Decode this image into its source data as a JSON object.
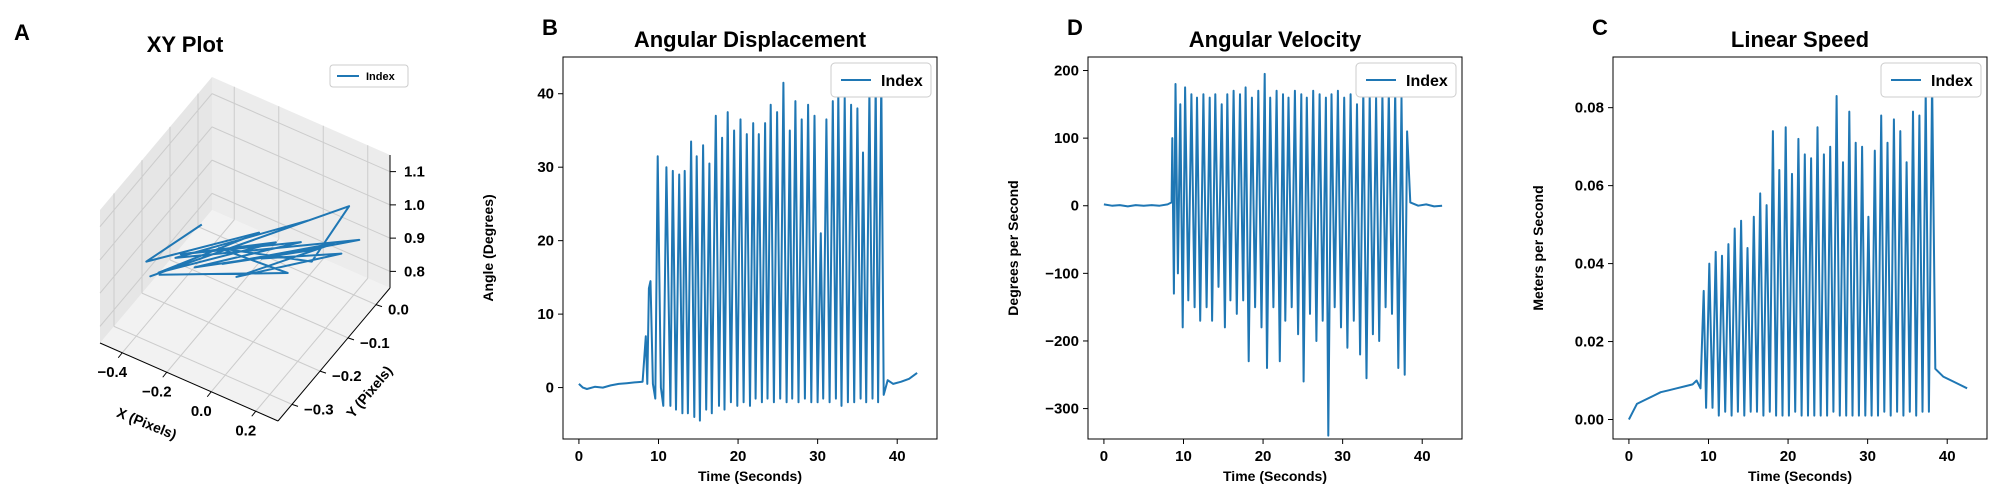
{
  "colors": {
    "series": "#1f77b4",
    "axis": "#000000",
    "grid": "#cccccc",
    "pane": "#f2f2f2"
  },
  "chart_data": [
    {
      "panel": "A",
      "type": "line",
      "projection": "3d",
      "title": "XY Plot",
      "xlabel": "X (Pixels)",
      "ylabel": "Y (Pixels)",
      "zlabel": "",
      "xlim": [
        -0.5,
        0.3
      ],
      "ylim": [
        -0.35,
        0.05
      ],
      "zlim": [
        0.75,
        1.15
      ],
      "xticks": [
        -0.4,
        -0.2,
        0.0,
        0.2
      ],
      "xtick_labels": [
        "−0.4",
        "−0.2",
        "0.0",
        "0.2"
      ],
      "yticks": [
        0.0,
        -0.1,
        -0.2,
        -0.3
      ],
      "ytick_labels": [
        "0.0",
        "−0.1",
        "−0.2",
        "−0.3"
      ],
      "zticks": [
        0.8,
        0.9,
        1.0,
        1.1
      ],
      "ztick_labels": [
        "0.8",
        "0.9",
        "1.0",
        "1.1"
      ],
      "grid": true,
      "legend": {
        "entries": [
          "Index"
        ],
        "placement": "top-right"
      },
      "series": [
        {
          "name": "Index",
          "points": [
            {
              "x": -0.42,
              "y": -0.05,
              "z": 0.83
            },
            {
              "x": -0.38,
              "y": -0.28,
              "z": 0.96
            },
            {
              "x": -0.2,
              "y": -0.02,
              "z": 0.84
            },
            {
              "x": -0.3,
              "y": -0.3,
              "z": 0.97
            },
            {
              "x": -0.1,
              "y": -0.04,
              "z": 0.86
            },
            {
              "x": -0.25,
              "y": -0.26,
              "z": 1.0
            },
            {
              "x": 0.0,
              "y": -0.03,
              "z": 0.88
            },
            {
              "x": -0.15,
              "y": -0.29,
              "z": 1.02
            },
            {
              "x": 0.08,
              "y": -0.05,
              "z": 0.9
            },
            {
              "x": -0.05,
              "y": -0.27,
              "z": 1.04
            },
            {
              "x": 0.15,
              "y": -0.03,
              "z": 0.92
            },
            {
              "x": 0.05,
              "y": -0.3,
              "z": 1.06
            },
            {
              "x": 0.22,
              "y": -0.06,
              "z": 0.94
            },
            {
              "x": 0.1,
              "y": -0.25,
              "z": 1.08
            },
            {
              "x": 0.25,
              "y": -0.02,
              "z": 0.95
            },
            {
              "x": -0.35,
              "y": -0.2,
              "z": 0.9
            },
            {
              "x": 0.12,
              "y": -0.1,
              "z": 1.05
            },
            {
              "x": -0.4,
              "y": -0.25,
              "z": 0.88
            },
            {
              "x": 0.28,
              "y": -0.08,
              "z": 1.12
            },
            {
              "x": 0.2,
              "y": -0.15,
              "z": 1.0
            },
            {
              "x": -0.28,
              "y": -0.1,
              "z": 0.85
            },
            {
              "x": 0.18,
              "y": -0.22,
              "z": 1.03
            },
            {
              "x": -0.45,
              "y": -0.18,
              "z": 0.8
            }
          ]
        }
      ]
    },
    {
      "panel": "B",
      "type": "line",
      "title": "Angular Displacement",
      "xlabel": "Time (Seconds)",
      "ylabel": "Angle (Degrees)",
      "xlim": [
        -2,
        45
      ],
      "ylim": [
        -7,
        45
      ],
      "xticks": [
        0,
        10,
        20,
        30,
        40
      ],
      "yticks": [
        0,
        10,
        20,
        30,
        40
      ],
      "grid": false,
      "legend": {
        "entries": [
          "Index"
        ],
        "placement": "top-right"
      },
      "series": [
        {
          "name": "Index",
          "x": [
            0.0,
            0.5,
            1.0,
            2.0,
            3.0,
            4.0,
            5.0,
            6.0,
            7.0,
            8.0,
            8.4,
            8.6,
            8.8,
            9.0,
            9.3,
            9.6,
            9.9,
            10.3,
            10.6,
            11.0,
            11.5,
            11.8,
            12.2,
            12.6,
            13.0,
            13.3,
            13.7,
            14.1,
            14.5,
            14.8,
            15.2,
            15.6,
            16.0,
            16.4,
            16.7,
            17.2,
            17.6,
            18.0,
            18.3,
            18.7,
            19.1,
            19.5,
            19.9,
            20.3,
            20.7,
            21.1,
            21.5,
            21.9,
            22.2,
            22.6,
            23.0,
            23.4,
            23.7,
            24.1,
            24.5,
            24.9,
            25.3,
            25.7,
            26.1,
            26.5,
            26.8,
            27.2,
            27.6,
            28.0,
            28.4,
            28.8,
            29.2,
            29.6,
            30.0,
            30.4,
            30.7,
            31.1,
            31.5,
            31.9,
            32.3,
            32.6,
            33.0,
            33.4,
            33.8,
            34.2,
            34.6,
            35.0,
            35.4,
            35.7,
            36.1,
            36.5,
            36.9,
            37.3,
            37.6,
            38.0,
            38.3,
            38.8,
            39.5,
            40.5,
            41.5,
            42.5
          ],
          "values": [
            0.5,
            0.0,
            -0.2,
            0.1,
            0.0,
            0.3,
            0.5,
            0.6,
            0.7,
            0.8,
            7.0,
            0.5,
            13.5,
            14.5,
            0.5,
            -1.5,
            31.5,
            0.0,
            -2.5,
            30.0,
            -2.5,
            29.5,
            -3.0,
            29.0,
            -3.5,
            29.5,
            -3.5,
            33.5,
            -4.0,
            31.5,
            -4.5,
            33.0,
            -3.0,
            30.5,
            -3.5,
            37.0,
            -2.5,
            34.0,
            -3.0,
            37.5,
            -2.0,
            35.0,
            -2.5,
            36.5,
            -2.0,
            34.5,
            -2.5,
            36.0,
            -1.5,
            34.5,
            -2.0,
            36.0,
            -1.5,
            38.5,
            -2.0,
            37.5,
            -1.5,
            41.5,
            -2.0,
            35.0,
            -1.5,
            39.0,
            -2.0,
            36.5,
            -1.5,
            38.5,
            -2.0,
            37.0,
            -2.0,
            21.0,
            -1.5,
            36.5,
            -2.0,
            39.0,
            -1.5,
            40.0,
            -2.5,
            39.5,
            -2.0,
            38.5,
            -2.0,
            38.0,
            -1.5,
            32.0,
            -2.0,
            40.5,
            -1.5,
            41.5,
            -2.0,
            42.0,
            -1.0,
            1.0,
            0.5,
            0.8,
            1.2,
            2.0
          ]
        }
      ]
    },
    {
      "panel": "D",
      "type": "line",
      "title": "Angular Velocity",
      "xlabel": "Time (Seconds)",
      "ylabel": "Degrees per Second",
      "xlim": [
        -2,
        45
      ],
      "ylim": [
        -345,
        220
      ],
      "xticks": [
        0,
        10,
        20,
        30,
        40
      ],
      "yticks": [
        -300,
        -200,
        -100,
        0,
        100,
        200
      ],
      "ytick_labels": [
        "−300",
        "−200",
        "−100",
        "0",
        "100",
        "200"
      ],
      "grid": false,
      "legend": {
        "entries": [
          "Index"
        ],
        "placement": "top-right"
      },
      "series": [
        {
          "name": "Index",
          "x": [
            0.0,
            1.0,
            2.0,
            3.0,
            4.0,
            5.0,
            6.0,
            7.0,
            8.0,
            8.5,
            8.6,
            8.8,
            9.0,
            9.3,
            9.6,
            9.9,
            10.2,
            10.6,
            11.0,
            11.4,
            11.7,
            12.1,
            12.5,
            12.9,
            13.3,
            13.6,
            14.0,
            14.4,
            14.8,
            15.2,
            15.5,
            15.9,
            16.3,
            16.7,
            17.1,
            17.5,
            17.8,
            18.2,
            18.6,
            19.0,
            19.4,
            19.8,
            20.2,
            20.5,
            20.9,
            21.3,
            21.7,
            22.1,
            22.5,
            22.8,
            23.2,
            23.6,
            24.0,
            24.4,
            24.8,
            25.1,
            25.5,
            25.9,
            26.3,
            26.7,
            27.1,
            27.5,
            27.9,
            28.2,
            28.6,
            29.0,
            29.4,
            29.8,
            30.2,
            30.6,
            31.0,
            31.4,
            31.8,
            32.2,
            32.6,
            33.0,
            33.4,
            33.8,
            34.2,
            34.6,
            35.0,
            35.4,
            35.8,
            36.2,
            36.6,
            37.0,
            37.4,
            37.8,
            38.1,
            38.5,
            39.5,
            40.5,
            41.5,
            42.5
          ],
          "values": [
            2,
            0,
            1,
            -1,
            1,
            0,
            1,
            0,
            2,
            5,
            100,
            -130,
            180,
            -100,
            150,
            -180,
            175,
            -140,
            165,
            -150,
            160,
            -170,
            165,
            -150,
            160,
            -170,
            165,
            -120,
            150,
            -180,
            165,
            -140,
            170,
            -160,
            165,
            -140,
            175,
            -230,
            160,
            -150,
            170,
            -180,
            195,
            -240,
            160,
            -150,
            170,
            -230,
            165,
            -170,
            160,
            -150,
            170,
            -190,
            165,
            -260,
            160,
            -160,
            170,
            -200,
            165,
            -170,
            160,
            -340,
            165,
            -150,
            170,
            -180,
            160,
            -210,
            165,
            -170,
            150,
            -220,
            170,
            -255,
            165,
            -190,
            160,
            -200,
            165,
            -150,
            170,
            -160,
            170,
            -240,
            160,
            -250,
            110,
            5,
            0,
            2,
            -1,
            0
          ]
        }
      ]
    },
    {
      "panel": "C",
      "type": "line",
      "title": "Linear Speed",
      "xlabel": "Time (Seconds)",
      "ylabel": "Meters per Second",
      "xlim": [
        -2,
        45
      ],
      "ylim": [
        -0.005,
        0.093
      ],
      "xticks": [
        0,
        10,
        20,
        30,
        40
      ],
      "yticks": [
        0.0,
        0.02,
        0.04,
        0.06,
        0.08
      ],
      "ytick_labels": [
        "0.00",
        "0.02",
        "0.04",
        "0.06",
        "0.08"
      ],
      "grid": false,
      "legend": {
        "entries": [
          "Index"
        ],
        "placement": "top-right"
      },
      "series": [
        {
          "name": "Index",
          "x": [
            0.0,
            0.5,
            1.0,
            2.0,
            3.0,
            4.0,
            5.0,
            6.0,
            7.0,
            8.0,
            8.5,
            9.0,
            9.4,
            9.7,
            10.1,
            10.5,
            10.9,
            11.3,
            11.7,
            12.1,
            12.5,
            12.9,
            13.3,
            13.7,
            14.1,
            14.5,
            14.9,
            15.3,
            15.7,
            16.1,
            16.5,
            16.9,
            17.3,
            17.7,
            18.1,
            18.5,
            18.9,
            19.3,
            19.7,
            20.1,
            20.5,
            20.9,
            21.3,
            21.7,
            22.1,
            22.5,
            22.9,
            23.3,
            23.7,
            24.1,
            24.5,
            24.9,
            25.3,
            25.7,
            26.1,
            26.5,
            26.9,
            27.3,
            27.7,
            28.1,
            28.5,
            28.9,
            29.3,
            29.7,
            30.1,
            30.5,
            30.9,
            31.3,
            31.7,
            32.1,
            32.5,
            32.9,
            33.3,
            33.7,
            34.1,
            34.5,
            34.9,
            35.3,
            35.7,
            36.1,
            36.5,
            36.9,
            37.3,
            37.7,
            38.1,
            38.5,
            39.5,
            40.5,
            41.5,
            42.5
          ],
          "values": [
            0.0,
            0.002,
            0.004,
            0.005,
            0.006,
            0.007,
            0.0075,
            0.008,
            0.0085,
            0.009,
            0.01,
            0.008,
            0.033,
            0.003,
            0.04,
            0.003,
            0.043,
            0.001,
            0.042,
            0.002,
            0.045,
            0.001,
            0.049,
            0.002,
            0.051,
            0.001,
            0.044,
            0.002,
            0.052,
            0.002,
            0.058,
            0.001,
            0.055,
            0.002,
            0.074,
            0.001,
            0.064,
            0.001,
            0.075,
            0.001,
            0.063,
            0.002,
            0.072,
            0.001,
            0.068,
            0.001,
            0.067,
            0.001,
            0.075,
            0.001,
            0.068,
            0.001,
            0.07,
            0.002,
            0.083,
            0.001,
            0.066,
            0.001,
            0.079,
            0.001,
            0.071,
            0.001,
            0.07,
            0.001,
            0.052,
            0.001,
            0.069,
            0.001,
            0.078,
            0.002,
            0.071,
            0.001,
            0.077,
            0.002,
            0.074,
            0.001,
            0.066,
            0.002,
            0.079,
            0.001,
            0.078,
            0.002,
            0.084,
            0.002,
            0.087,
            0.013,
            0.011,
            0.01,
            0.009,
            0.008
          ]
        }
      ]
    }
  ]
}
